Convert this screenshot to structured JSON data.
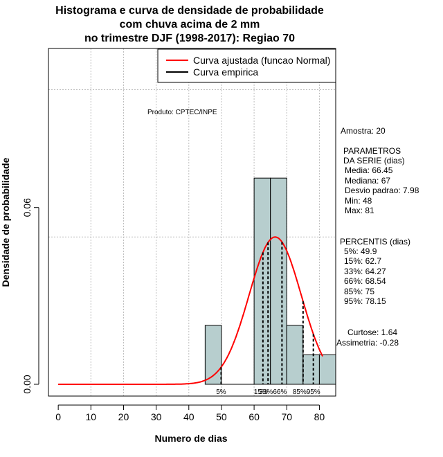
{
  "chart_data": {
    "type": "bar",
    "title_lines": [
      "Histograma e curva de densidade de probabilidade",
      "com chuva acima de 2 mm",
      "no trimestre DJF (1998-2017): Regiao 70"
    ],
    "xlabel": "Numero de dias",
    "ylabel": "Densidade de probabilidade",
    "xlim": [
      -3,
      85
    ],
    "ylim": [
      -0.004,
      0.114
    ],
    "x_ticks": [
      0,
      10,
      20,
      30,
      40,
      50,
      60,
      70,
      80
    ],
    "y_ticks": [
      0.0,
      0.06
    ],
    "y_tick_labels": [
      "0.00",
      "0.06"
    ],
    "histogram": {
      "bin_edges": [
        45,
        50,
        55,
        60,
        65,
        70,
        75,
        80,
        85
      ],
      "densities": [
        0.02,
        0.0,
        0.0,
        0.07,
        0.07,
        0.02,
        0.01,
        0.01
      ],
      "fill_color": "#b7cece"
    },
    "normal_curve": {
      "mean": 66.45,
      "sd": 7.98,
      "x_from": 0,
      "x_to": 81,
      "color": "#ff0000"
    },
    "percentiles": [
      {
        "label": "5%",
        "value": 49.9
      },
      {
        "label": "15%",
        "value": 62.7
      },
      {
        "label": "33%",
        "value": 64.27
      },
      {
        "label": "66%",
        "value": 68.54
      },
      {
        "label": "85%",
        "value": 75
      },
      {
        "label": "95%",
        "value": 78.15
      }
    ],
    "legend": {
      "position": "top-right",
      "entries": [
        {
          "label": "Curva ajustada (funcao Normal)",
          "color": "#ff0000"
        },
        {
          "label": "Curva empirica",
          "color": "#000000"
        }
      ]
    },
    "annotations": {
      "produto": "Produto: CPTEC/INPE",
      "amostra": "Amostra: 20",
      "parametros_title_1": "PARAMETROS",
      "parametros_title_2": "DA SERIE (dias)",
      "media": "Media: 66.45",
      "mediana": "Mediana: 67",
      "desvio": "Desvio padrao: 7.98",
      "min": "Min: 48",
      "max": "Max: 81",
      "percentis_title": "PERCENTIS (dias)",
      "p5": "5%: 49.9",
      "p15": "15%: 62.7",
      "p33": "33%: 64.27",
      "p66": "66%: 68.54",
      "p85": "85%: 75",
      "p95": "95%: 78.15",
      "curtose": "Curtose: 1.64",
      "assimetria": "Assimetria: -0.28"
    }
  }
}
